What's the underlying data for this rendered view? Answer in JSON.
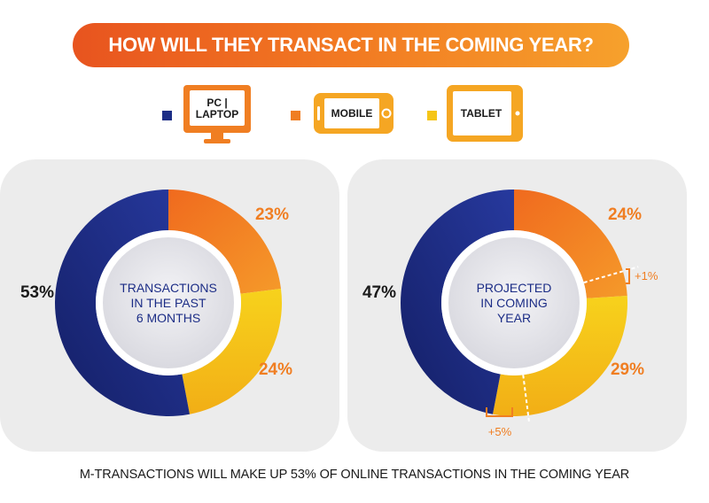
{
  "header": {
    "title": "HOW WILL THEY TRANSACT IN THE COMING YEAR?"
  },
  "legend": {
    "items": [
      {
        "label_line1": "PC |",
        "label_line2": "LAPTOP",
        "color": "#1c2d86",
        "icon": "monitor-icon"
      },
      {
        "label": "MOBILE",
        "color": "#f07e22",
        "icon": "smartphone-icon"
      },
      {
        "label": "TABLET",
        "color": "#f5c518",
        "icon": "tablet-icon"
      }
    ]
  },
  "chart_data": [
    {
      "type": "pie",
      "categories": [
        "PC | LAPTOP",
        "MOBILE",
        "TABLET"
      ],
      "values": [
        53,
        23,
        24
      ],
      "value_labels": [
        "53%",
        "23%",
        "24%"
      ],
      "center_label": [
        "TRANSACTIONS",
        "IN THE PAST",
        "6 MONTHS"
      ],
      "colors": [
        "#1c2d86",
        "#f07e22",
        "#f5c518"
      ]
    },
    {
      "type": "pie",
      "categories": [
        "PC | LAPTOP",
        "MOBILE",
        "TABLET"
      ],
      "values": [
        47,
        24,
        29
      ],
      "value_labels": [
        "47%",
        "24%",
        "29%"
      ],
      "center_label": [
        "PROJECTED",
        "IN COMING",
        "YEAR"
      ],
      "colors": [
        "#1c2d86",
        "#f07e22",
        "#f5c518"
      ],
      "annotations": [
        "+1%",
        "+5%"
      ]
    }
  ],
  "footer": {
    "text": "M-TRANSACTIONS WILL MAKE UP 53% OF ONLINE TRANSACTIONS IN THE COMING YEAR"
  }
}
